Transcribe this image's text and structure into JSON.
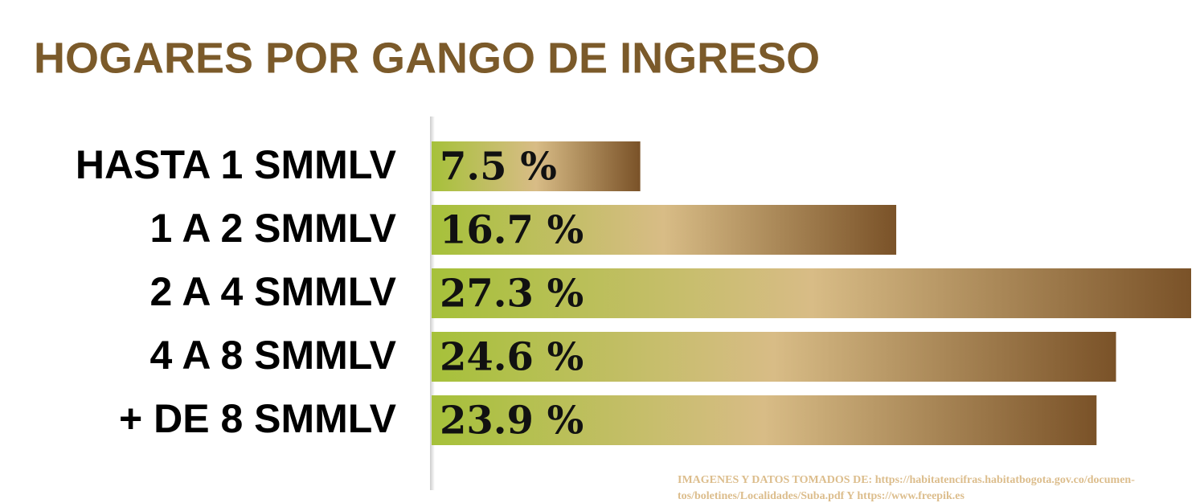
{
  "chart_data": {
    "type": "hbar",
    "title": "HOGARES POR GANGO DE INGRESO",
    "categories": [
      "HASTA 1 SMMLV",
      "1 A 2 SMMLV",
      "2 A 4 SMMLV",
      "4 A 8 SMMLV",
      "+ DE 8 SMMLV"
    ],
    "values": [
      7.5,
      16.7,
      27.3,
      24.6,
      23.9
    ],
    "value_labels": [
      "7.5 %",
      "16.7 %",
      "27.3 %",
      "24.6 %",
      "23.9 %"
    ],
    "colors": [
      "#a6c13a",
      "#d8bc86",
      "#7a5228"
    ],
    "source": [
      "IMAGENES Y DATOS TOMADOS DE:  https://habitatencifras.habitatbogota.gov.co/documen-",
      "tos/boletines/Localidades/Suba.pdf  Y   https://www.freepik.es"
    ]
  }
}
